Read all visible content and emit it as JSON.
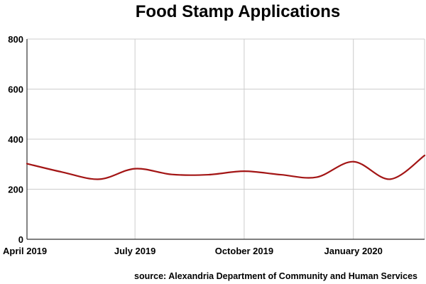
{
  "chart_data": {
    "type": "line",
    "title": "Food Stamp Applications",
    "source": "source: Alexandria Department of Community and Human Services",
    "xlabel": "",
    "ylabel": "",
    "ylim": [
      0,
      800
    ],
    "yticks": [
      0,
      200,
      400,
      600,
      800
    ],
    "xlim": [
      "2019-04-01",
      "2020-03-01"
    ],
    "xticks": [
      {
        "date": "2019-04-01",
        "label": "April 2019"
      },
      {
        "date": "2019-07-01",
        "label": "July 2019"
      },
      {
        "date": "2019-10-01",
        "label": "October 2019"
      },
      {
        "date": "2020-01-01",
        "label": "January 2020"
      }
    ],
    "grid": true,
    "series": [
      {
        "color": "#a31515",
        "points": [
          {
            "x": "2019-04-01",
            "y": 302
          },
          {
            "x": "2019-05-01",
            "y": 268
          },
          {
            "x": "2019-06-01",
            "y": 240
          },
          {
            "x": "2019-07-01",
            "y": 282
          },
          {
            "x": "2019-08-01",
            "y": 259
          },
          {
            "x": "2019-09-01",
            "y": 258
          },
          {
            "x": "2019-10-01",
            "y": 272
          },
          {
            "x": "2019-11-01",
            "y": 258
          },
          {
            "x": "2019-12-01",
            "y": 248
          },
          {
            "x": "2020-01-01",
            "y": 310
          },
          {
            "x": "2020-02-01",
            "y": 240
          },
          {
            "x": "2020-03-01",
            "y": 335
          }
        ]
      }
    ]
  }
}
